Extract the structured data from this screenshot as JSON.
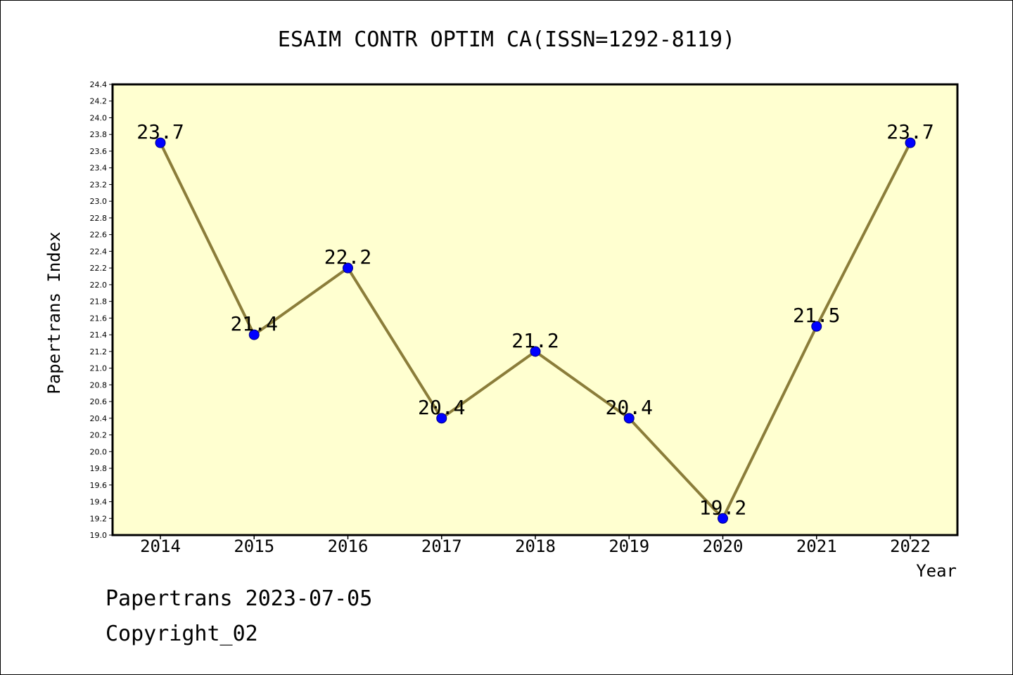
{
  "chart_data": {
    "type": "line",
    "title": "ESAIM CONTR OPTIM CA(ISSN=1292-8119)",
    "xlabel": "Year",
    "ylabel": "Papertrans Index",
    "categories": [
      "2014",
      "2015",
      "2016",
      "2017",
      "2018",
      "2019",
      "2020",
      "2021",
      "2022"
    ],
    "series": [
      {
        "values": [
          23.7,
          21.4,
          22.2,
          20.4,
          21.2,
          20.4,
          19.2,
          21.5,
          23.7
        ]
      }
    ],
    "data_labels": [
      "23.7",
      "21.4",
      "22.2",
      "20.4",
      "21.2",
      "20.4",
      "19.2",
      "21.5",
      "23.7"
    ],
    "ylim": [
      19.0,
      24.4
    ],
    "ytick_step": 0.2,
    "yticks": [
      "19.0",
      "19.2",
      "19.4",
      "19.6",
      "19.8",
      "20.0",
      "20.2",
      "20.4",
      "20.6",
      "20.8",
      "21.0",
      "21.2",
      "21.4",
      "21.6",
      "21.8",
      "22.0",
      "22.2",
      "22.4",
      "22.6",
      "22.8",
      "23.0",
      "23.2",
      "23.4",
      "23.6",
      "23.8",
      "24.0",
      "24.2",
      "24.4"
    ],
    "grid": false,
    "colors": {
      "plot_bg": "#ffffd0",
      "line": "#8b7d3a",
      "marker": "#0000ff"
    }
  },
  "footer": {
    "date_text": "Papertrans 2023-07-05",
    "copyright": "Copyright_02"
  }
}
